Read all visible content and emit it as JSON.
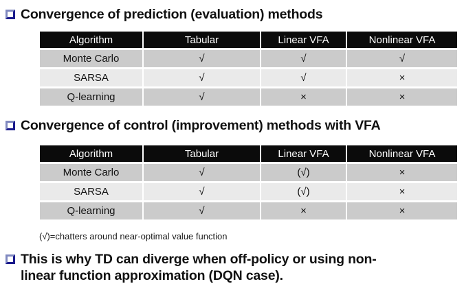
{
  "slide": {
    "bullet1": "Convergence of prediction (evaluation) methods",
    "bullet2": "Convergence of control (improvement) methods with VFA",
    "bullet3_line1": "This is why TD can diverge when off-policy or using non-",
    "bullet3_line2": "linear function approximation (DQN case).",
    "note": "(√)=chatters around near-optimal value function"
  },
  "tables": [
    {
      "name": "prediction-convergence",
      "headers": [
        "Algorithm",
        "Tabular",
        "Linear VFA",
        "Nonlinear VFA"
      ],
      "rows": [
        [
          "Monte Carlo",
          "√",
          "√",
          "√"
        ],
        [
          "SARSA",
          "√",
          "√",
          "×"
        ],
        [
          "Q-learning",
          "√",
          "×",
          "×"
        ]
      ]
    },
    {
      "name": "control-convergence",
      "headers": [
        "Algorithm",
        "Tabular",
        "Linear VFA",
        "Nonlinear VFA"
      ],
      "rows": [
        [
          "Monte Carlo",
          "√",
          "(√)",
          "×"
        ],
        [
          "SARSA",
          "√",
          "(√)",
          "×"
        ],
        [
          "Q-learning",
          "√",
          "×",
          "×"
        ]
      ]
    }
  ],
  "colors": {
    "table_header_bg": "#0b0b0b",
    "table_header_text": "#ffffff",
    "row_dark_gray": "#cbcbcb",
    "row_light_gray": "#eaeaea",
    "bullet_navy": "#1a1a8c",
    "text": "#111111",
    "background": "#ffffff"
  }
}
